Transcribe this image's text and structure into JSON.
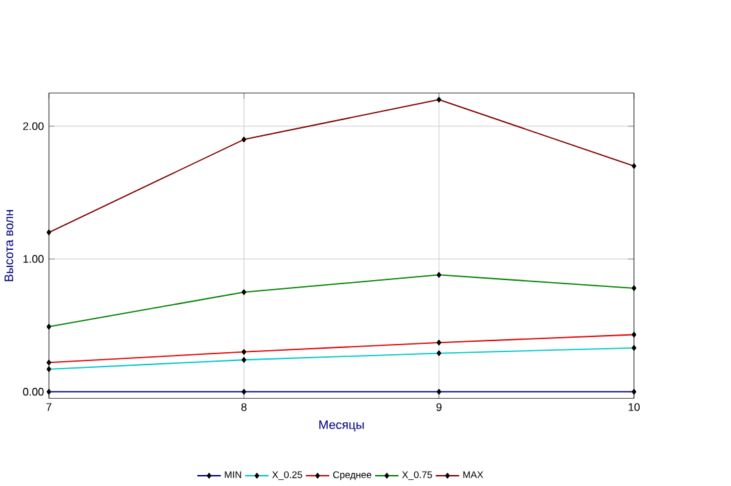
{
  "chart_data": {
    "type": "line",
    "xlabel": "Месяцы",
    "ylabel": "Высота волн",
    "x": [
      7,
      8,
      9,
      10
    ],
    "series": [
      {
        "name": "MIN",
        "color": "#000080",
        "values": [
          0,
          0,
          0,
          0
        ]
      },
      {
        "name": "X_0.25",
        "color": "#00c8c8",
        "values": [
          0.17,
          0.24,
          0.29,
          0.33
        ]
      },
      {
        "name": "Среднее",
        "color": "#e00000",
        "values": [
          0.22,
          0.3,
          0.37,
          0.43
        ]
      },
      {
        "name": "X_0.75",
        "color": "#008000",
        "values": [
          0.49,
          0.75,
          0.88,
          0.78
        ]
      },
      {
        "name": "MAX",
        "color": "#800000",
        "values": [
          1.2,
          1.9,
          2.2,
          1.7
        ]
      }
    ],
    "xlim": [
      7,
      10
    ],
    "ylim": [
      -0.05,
      2.25
    ],
    "xticks": [
      7,
      8,
      9,
      10
    ],
    "yticks": [
      {
        "value": 0,
        "label": "0.00"
      },
      {
        "value": 1,
        "label": "1.00"
      },
      {
        "value": 2,
        "label": "2.00"
      }
    ],
    "grid": true,
    "legend": "bottom",
    "marker": "diamond",
    "line_style": "solid"
  }
}
